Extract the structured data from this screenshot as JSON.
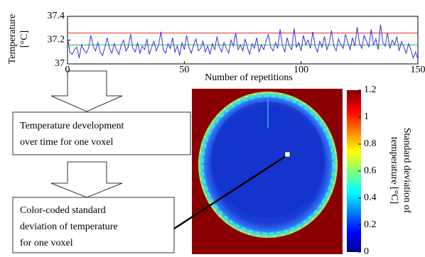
{
  "chart_data": {
    "type": "line",
    "xlabel": "Number of repetitions",
    "ylabel": [
      "Temperature",
      "[°C]"
    ],
    "xlim": [
      0,
      150
    ],
    "xticks": [
      0,
      50,
      100,
      150
    ],
    "ylim": [
      37,
      37.4
    ],
    "yticks": [
      37,
      37.2,
      37.4
    ],
    "x": [
      0,
      1,
      2,
      3,
      4,
      5,
      6,
      7,
      8,
      9,
      10,
      11,
      12,
      13,
      14,
      15,
      16,
      17,
      18,
      19,
      20,
      21,
      22,
      23,
      24,
      25,
      26,
      27,
      28,
      29,
      30,
      31,
      32,
      33,
      34,
      35,
      36,
      37,
      38,
      39,
      40,
      41,
      42,
      43,
      44,
      45,
      46,
      47,
      48,
      49,
      50,
      51,
      52,
      53,
      54,
      55,
      56,
      57,
      58,
      59,
      60,
      61,
      62,
      63,
      64,
      65,
      66,
      67,
      68,
      69,
      70,
      71,
      72,
      73,
      74,
      75,
      76,
      77,
      78,
      79,
      80,
      81,
      82,
      83,
      84,
      85,
      86,
      87,
      88,
      89,
      90,
      91,
      92,
      93,
      94,
      95,
      96,
      97,
      98,
      99,
      100,
      101,
      102,
      103,
      104,
      105,
      106,
      107,
      108,
      109,
      110,
      111,
      112,
      113,
      114,
      115,
      116,
      117,
      118,
      119,
      120,
      121,
      122,
      123,
      124,
      125,
      126,
      127,
      128,
      129,
      130,
      131,
      132,
      133,
      134,
      135,
      136,
      137,
      138,
      139,
      140,
      141,
      142,
      143,
      144,
      145,
      146,
      147,
      148,
      149,
      150
    ],
    "series": [
      {
        "color": "#3333dd",
        "values": [
          37.22,
          37.1,
          37.08,
          37.12,
          37.14,
          37.05,
          37.16,
          37.12,
          37.09,
          37.13,
          37.24,
          37.15,
          37.11,
          37.18,
          37.1,
          37.07,
          37.14,
          37.22,
          37.13,
          37.09,
          37.17,
          37.12,
          37.08,
          37.16,
          37.2,
          37.11,
          37.14,
          37.25,
          37.13,
          37.1,
          37.18,
          37.09,
          37.15,
          37.12,
          37.21,
          37.08,
          37.14,
          37.19,
          37.11,
          37.16,
          37.27,
          37.12,
          37.09,
          37.17,
          37.13,
          37.22,
          37.1,
          37.15,
          37.07,
          37.18,
          37.12,
          37.24,
          37.14,
          37.09,
          37.16,
          37.21,
          37.11,
          37.13,
          37.19,
          37.1,
          37.15,
          37.08,
          37.17,
          37.12,
          37.23,
          37.14,
          37.1,
          37.18,
          37.13,
          37.09,
          37.2,
          37.15,
          37.26,
          37.12,
          37.16,
          37.11,
          37.21,
          37.14,
          37.08,
          37.17,
          37.13,
          37.22,
          37.1,
          37.16,
          37.12,
          37.19,
          37.25,
          37.14,
          37.11,
          37.18,
          37.13,
          37.29,
          37.16,
          37.1,
          37.22,
          37.15,
          37.12,
          37.3,
          37.14,
          37.18,
          37.11,
          37.24,
          37.16,
          37.2,
          37.13,
          37.27,
          37.15,
          37.1,
          37.19,
          37.14,
          37.23,
          37.12,
          37.17,
          37.28,
          37.15,
          37.11,
          37.21,
          37.16,
          37.13,
          37.25,
          37.18,
          37.12,
          37.22,
          37.15,
          37.31,
          37.17,
          37.13,
          37.24,
          37.19,
          37.14,
          37.29,
          37.16,
          37.21,
          37.12,
          37.33,
          37.18,
          37.15,
          37.26,
          37.13,
          37.2,
          37.16,
          37.23,
          37.11,
          37.19,
          37.14,
          37.09,
          37.17,
          37.12,
          37.05,
          37.1,
          37.04
        ]
      }
    ],
    "reference_lines": [
      {
        "value": 37.26,
        "color": "#e03030"
      },
      {
        "value": 37.16,
        "color": "#30b030"
      }
    ]
  },
  "colorbar": {
    "label": [
      "Standard deviation of",
      "temperature [°C]"
    ],
    "lim": [
      0,
      1.2
    ],
    "ticks": [
      0,
      0.2,
      0.4,
      0.6,
      0.8,
      1,
      1.2
    ]
  },
  "boxes": [
    {
      "lines": [
        "Temperature development",
        "over time for one voxel"
      ]
    },
    {
      "lines": [
        "Color-coded standard",
        "deviation of temperature",
        "for one voxel"
      ]
    }
  ]
}
